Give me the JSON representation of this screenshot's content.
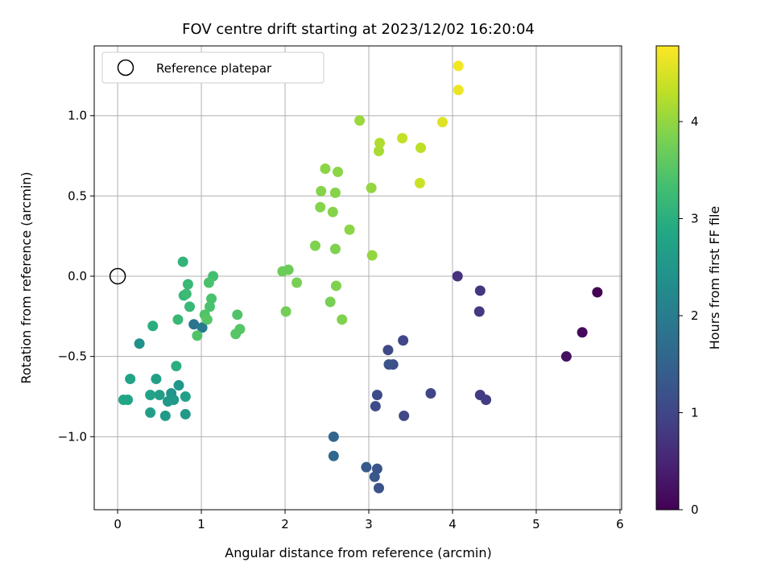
{
  "chart_data": {
    "type": "scatter",
    "title": "FOV centre drift starting at 2023/12/02 16:20:04",
    "xlabel": "Angular distance from reference (arcmin)",
    "ylabel": "Rotation from reference (arcmin)",
    "xlim": [
      -0.28,
      6.02
    ],
    "ylim": [
      -1.455,
      1.435
    ],
    "xticks": [
      0,
      1,
      2,
      3,
      4,
      5,
      6
    ],
    "xtick_labels": [
      "0",
      "1",
      "2",
      "3",
      "4",
      "5",
      "6"
    ],
    "yticks": [
      -1.0,
      -0.5,
      0.0,
      0.5,
      1.0
    ],
    "ytick_labels": [
      "−1.0",
      "−0.5",
      "0.0",
      "0.5",
      "1.0"
    ],
    "grid": true,
    "legend": {
      "placement": "upper-left",
      "entries": [
        "Reference platepar"
      ]
    },
    "reference_point": {
      "x": 0,
      "y": 0,
      "marker": "open-circle"
    },
    "colorbar": {
      "label": "Hours from first FF file",
      "colormap": "viridis",
      "range": [
        0,
        4.78
      ],
      "ticks": [
        0,
        1,
        2,
        3,
        4
      ],
      "tick_labels": [
        "0",
        "1",
        "2",
        "3",
        "4"
      ]
    },
    "series": [
      {
        "points": [
          {
            "x": 5.73,
            "y": -0.1,
            "h": 0.02
          },
          {
            "x": 5.55,
            "y": -0.35,
            "h": 0.12
          },
          {
            "x": 5.36,
            "y": -0.5,
            "h": 0.2
          },
          {
            "x": 4.06,
            "y": 0.0,
            "h": 0.7
          },
          {
            "x": 4.33,
            "y": -0.09,
            "h": 0.75
          },
          {
            "x": 4.32,
            "y": -0.22,
            "h": 0.8
          },
          {
            "x": 4.33,
            "y": -0.74,
            "h": 0.82
          },
          {
            "x": 4.4,
            "y": -0.77,
            "h": 0.85
          },
          {
            "x": 3.74,
            "y": -0.73,
            "h": 0.95
          },
          {
            "x": 3.41,
            "y": -0.4,
            "h": 1.0
          },
          {
            "x": 3.23,
            "y": -0.46,
            "h": 1.05
          },
          {
            "x": 3.42,
            "y": -0.87,
            "h": 1.05
          },
          {
            "x": 3.1,
            "y": -0.74,
            "h": 1.1
          },
          {
            "x": 3.08,
            "y": -0.81,
            "h": 1.1
          },
          {
            "x": 3.29,
            "y": -0.55,
            "h": 1.15
          },
          {
            "x": 3.24,
            "y": -0.55,
            "h": 1.2
          },
          {
            "x": 3.12,
            "y": -1.32,
            "h": 1.2
          },
          {
            "x": 3.1,
            "y": -1.2,
            "h": 1.25
          },
          {
            "x": 3.07,
            "y": -1.25,
            "h": 1.3
          },
          {
            "x": 2.97,
            "y": -1.19,
            "h": 1.35
          },
          {
            "x": 2.58,
            "y": -1.0,
            "h": 1.55
          },
          {
            "x": 2.58,
            "y": -1.12,
            "h": 1.6
          },
          {
            "x": 0.91,
            "y": -0.3,
            "h": 1.85
          },
          {
            "x": 1.01,
            "y": -0.32,
            "h": 1.95
          },
          {
            "x": 0.26,
            "y": -0.42,
            "h": 2.4
          },
          {
            "x": 0.64,
            "y": -0.73,
            "h": 2.45
          },
          {
            "x": 0.73,
            "y": -0.68,
            "h": 2.5
          },
          {
            "x": 0.6,
            "y": -0.78,
            "h": 2.55
          },
          {
            "x": 0.67,
            "y": -0.77,
            "h": 2.55
          },
          {
            "x": 0.57,
            "y": -0.87,
            "h": 2.6
          },
          {
            "x": 0.5,
            "y": -0.74,
            "h": 2.65
          },
          {
            "x": 0.39,
            "y": -0.85,
            "h": 2.65
          },
          {
            "x": 0.81,
            "y": -0.86,
            "h": 2.6
          },
          {
            "x": 0.81,
            "y": -0.75,
            "h": 2.7
          },
          {
            "x": 0.46,
            "y": -0.64,
            "h": 2.7
          },
          {
            "x": 0.39,
            "y": -0.74,
            "h": 2.75
          },
          {
            "x": 0.15,
            "y": -0.64,
            "h": 2.75
          },
          {
            "x": 0.07,
            "y": -0.77,
            "h": 2.8
          },
          {
            "x": 0.12,
            "y": -0.77,
            "h": 2.8
          },
          {
            "x": 0.7,
            "y": -0.56,
            "h": 3.0
          },
          {
            "x": 0.42,
            "y": -0.31,
            "h": 3.0
          },
          {
            "x": 0.78,
            "y": 0.09,
            "h": 3.1
          },
          {
            "x": 0.79,
            "y": -0.12,
            "h": 3.15
          },
          {
            "x": 0.84,
            "y": -0.05,
            "h": 3.2
          },
          {
            "x": 0.86,
            "y": -0.19,
            "h": 3.2
          },
          {
            "x": 0.72,
            "y": -0.27,
            "h": 3.2
          },
          {
            "x": 0.82,
            "y": -0.11,
            "h": 3.25
          },
          {
            "x": 1.14,
            "y": 0.0,
            "h": 3.35
          },
          {
            "x": 1.09,
            "y": -0.04,
            "h": 3.4
          },
          {
            "x": 1.12,
            "y": -0.14,
            "h": 3.4
          },
          {
            "x": 1.1,
            "y": -0.19,
            "h": 3.4
          },
          {
            "x": 1.04,
            "y": -0.24,
            "h": 3.45
          },
          {
            "x": 1.07,
            "y": -0.27,
            "h": 3.5
          },
          {
            "x": 0.95,
            "y": -0.37,
            "h": 3.45
          },
          {
            "x": 1.43,
            "y": -0.24,
            "h": 3.45
          },
          {
            "x": 1.46,
            "y": -0.33,
            "h": 3.5
          },
          {
            "x": 1.41,
            "y": -0.36,
            "h": 3.5
          },
          {
            "x": 1.97,
            "y": 0.03,
            "h": 3.7
          },
          {
            "x": 2.04,
            "y": 0.04,
            "h": 3.7
          },
          {
            "x": 2.14,
            "y": -0.04,
            "h": 3.8
          },
          {
            "x": 2.01,
            "y": -0.22,
            "h": 3.75
          },
          {
            "x": 2.54,
            "y": -0.16,
            "h": 3.8
          },
          {
            "x": 2.61,
            "y": -0.06,
            "h": 3.85
          },
          {
            "x": 2.68,
            "y": -0.27,
            "h": 3.85
          },
          {
            "x": 2.36,
            "y": 0.19,
            "h": 3.85
          },
          {
            "x": 2.6,
            "y": 0.17,
            "h": 3.85
          },
          {
            "x": 2.42,
            "y": 0.43,
            "h": 3.9
          },
          {
            "x": 2.57,
            "y": 0.4,
            "h": 3.9
          },
          {
            "x": 2.43,
            "y": 0.53,
            "h": 3.9
          },
          {
            "x": 2.6,
            "y": 0.52,
            "h": 3.9
          },
          {
            "x": 2.48,
            "y": 0.67,
            "h": 3.95
          },
          {
            "x": 2.63,
            "y": 0.65,
            "h": 3.95
          },
          {
            "x": 2.77,
            "y": 0.29,
            "h": 3.95
          },
          {
            "x": 3.04,
            "y": 0.13,
            "h": 4.0
          },
          {
            "x": 3.03,
            "y": 0.55,
            "h": 4.0
          },
          {
            "x": 2.89,
            "y": 0.97,
            "h": 4.05
          },
          {
            "x": 3.12,
            "y": 0.78,
            "h": 4.15
          },
          {
            "x": 3.13,
            "y": 0.83,
            "h": 4.2
          },
          {
            "x": 3.62,
            "y": 0.8,
            "h": 4.3
          },
          {
            "x": 3.4,
            "y": 0.86,
            "h": 4.35
          },
          {
            "x": 3.61,
            "y": 0.58,
            "h": 4.4
          },
          {
            "x": 3.88,
            "y": 0.96,
            "h": 4.55
          },
          {
            "x": 4.07,
            "y": 1.16,
            "h": 4.65
          },
          {
            "x": 4.07,
            "y": 1.31,
            "h": 4.7
          }
        ]
      }
    ]
  }
}
